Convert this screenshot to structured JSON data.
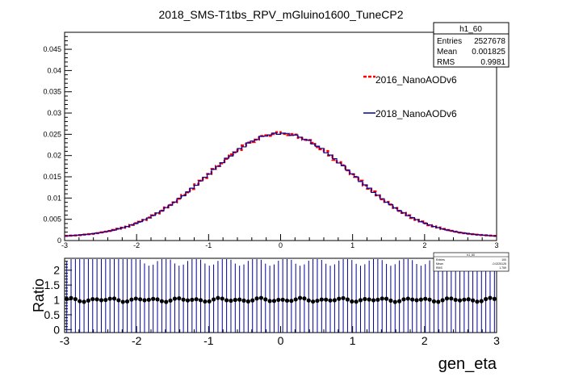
{
  "chart_data": [
    {
      "type": "histogram-step",
      "title": "2018_SMS-T1tbs_RPV_mGluino1600_TuneCP2",
      "xlabel": "",
      "ylabel": "",
      "xlim": [
        -3,
        3
      ],
      "ylim": [
        0,
        0.049
      ],
      "yticks": [
        "0",
        "0.005",
        "0.01",
        "0.015",
        "0.02",
        "0.025",
        "0.03",
        "0.035",
        "0.04",
        "0.045"
      ],
      "xticks": [
        "-3",
        "-2",
        "-1",
        "0",
        "1",
        "2",
        "3"
      ],
      "series": [
        {
          "name": "2016_NanoAODv6",
          "color": "#ff0000",
          "style": "dashed"
        },
        {
          "name": "2018_NanoAODv6",
          "color": "#000099",
          "style": "solid"
        }
      ],
      "shape": {
        "peak": 0.0252,
        "sigma": 1.0,
        "baseline": 0.0008
      },
      "stats_box": {
        "name": "h1_60",
        "rows": [
          {
            "label": "Entries",
            "value": "2527678"
          },
          {
            "label": "Mean",
            "value": "0.001825"
          },
          {
            "label": "RMS",
            "value": "0.9981"
          }
        ]
      }
    },
    {
      "type": "scatter-errorbars",
      "ylabel": "Ratio",
      "xlabel": "gen_eta",
      "xlim": [
        -3,
        3
      ],
      "ylim": [
        -0.1,
        2.4
      ],
      "yticks": [
        "0",
        "0.5",
        "1",
        "1.5",
        "2"
      ],
      "xticks": [
        "-3",
        "-2",
        "-1",
        "0",
        "1",
        "2",
        "3"
      ],
      "ratio_mean": 1.0,
      "error_up": 2.3,
      "error_down": -0.3,
      "stats_box": {
        "name": "h1_60",
        "rows": [
          {
            "label": "Entries",
            "value": "100"
          },
          {
            "label": "Mean",
            "value": "-0.0225125"
          },
          {
            "label": "RMS",
            "value": "1.759"
          }
        ]
      }
    }
  ]
}
